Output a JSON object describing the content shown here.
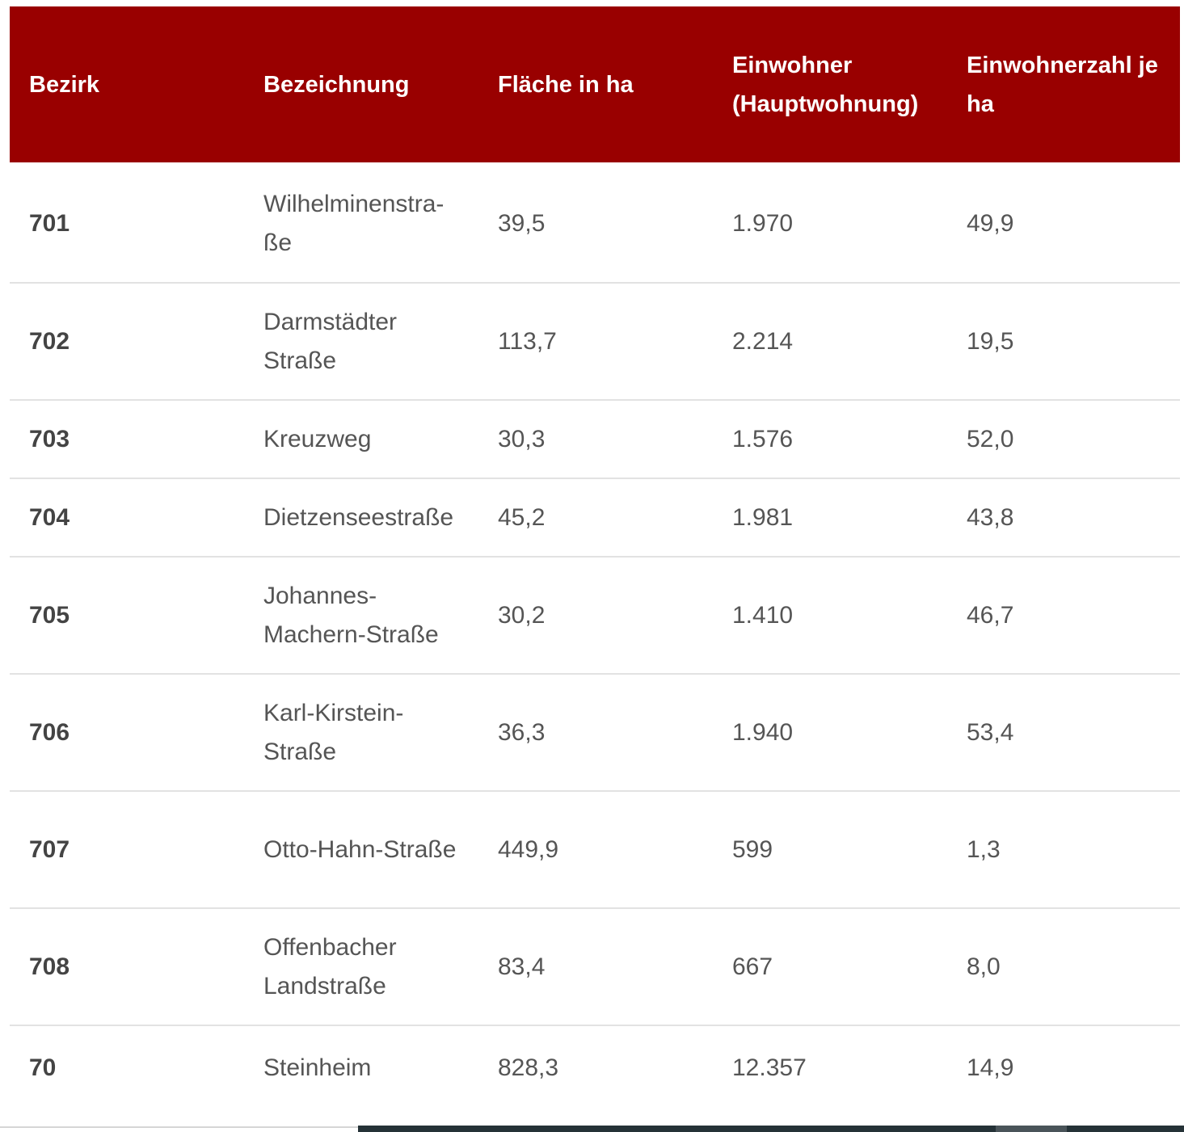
{
  "table": {
    "headers": [
      "Bezirk",
      "Bezeichnung",
      "Fläche in ha",
      "Einwohner (Hauptwoh­nung)",
      "Einwohnerzahl je ha"
    ],
    "rows": [
      [
        "701",
        "Wilhelminenstra­ße",
        "39,5",
        "1.970",
        "49,9"
      ],
      [
        "702",
        "Darmstädter Straße",
        "113,7",
        "2.214",
        "19,5"
      ],
      [
        "703",
        "Kreuzweg",
        "30,3",
        "1.576",
        "52,0"
      ],
      [
        "704",
        "Dietzenseestraße",
        "45,2",
        "1.981",
        "43,8"
      ],
      [
        "705",
        "Johannes-Machern-Straße",
        "30,2",
        "1.410",
        "46,7"
      ],
      [
        "706",
        "Karl-Kirstein-Straße",
        "36,3",
        "1.940",
        "53,4"
      ],
      [
        "707",
        "Otto-Hahn-Straße",
        "449,9",
        "599",
        "1,3"
      ],
      [
        "708",
        "Offenbacher Landstraße",
        "83,4",
        "667",
        "8,0"
      ],
      [
        "70",
        "Steinheim",
        "828,3",
        "12.357",
        "14,9"
      ]
    ]
  },
  "colors": {
    "header_background": "#990000",
    "header_text": "#ffffff",
    "body_text": "#555555",
    "row_divider": "#e2e2e2"
  }
}
